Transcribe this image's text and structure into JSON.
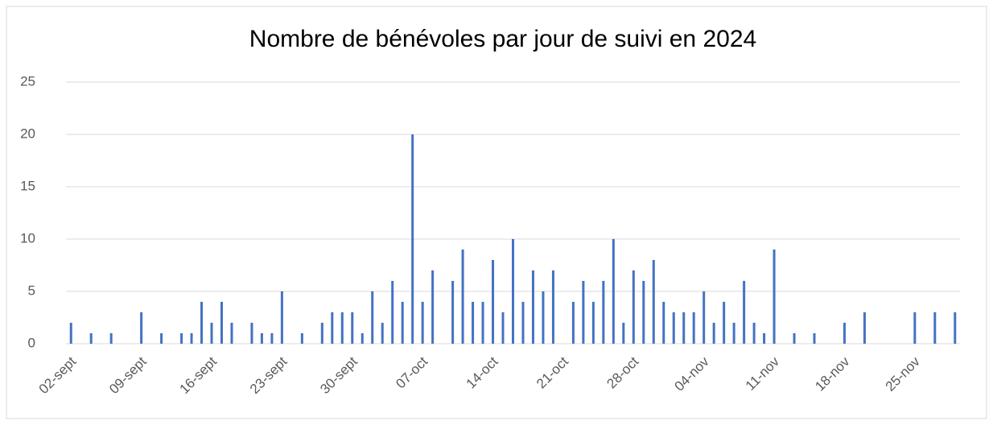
{
  "chart_data": {
    "type": "bar",
    "title": "Nombre de bénévoles par jour de suivi en 2024",
    "categories": [
      "02-sept",
      null,
      null,
      null,
      null,
      null,
      null,
      "09-sept",
      null,
      null,
      null,
      null,
      null,
      null,
      "16-sept",
      null,
      null,
      null,
      null,
      null,
      null,
      "23-sept",
      null,
      null,
      null,
      null,
      null,
      null,
      "30-sept",
      null,
      null,
      null,
      null,
      null,
      null,
      "07-oct",
      null,
      null,
      null,
      null,
      null,
      null,
      "14-oct",
      null,
      null,
      null,
      null,
      null,
      null,
      "21-oct",
      null,
      null,
      null,
      null,
      null,
      null,
      "28-oct",
      null,
      null,
      null,
      null,
      null,
      null,
      "04-nov",
      null,
      null,
      null,
      null,
      null,
      null,
      "11-nov",
      null,
      null,
      null,
      null,
      null,
      null,
      "18-nov",
      null,
      null,
      null,
      null,
      null,
      null,
      "25-nov",
      null,
      null,
      null,
      null
    ],
    "values": [
      2,
      null,
      1,
      null,
      1,
      null,
      null,
      3,
      null,
      1,
      null,
      1,
      1,
      4,
      2,
      4,
      2,
      null,
      2,
      1,
      1,
      5,
      null,
      1,
      null,
      2,
      3,
      3,
      3,
      1,
      5,
      2,
      6,
      4,
      20,
      4,
      7,
      null,
      6,
      9,
      4,
      4,
      8,
      3,
      10,
      4,
      7,
      5,
      7,
      null,
      4,
      6,
      4,
      6,
      10,
      2,
      7,
      6,
      8,
      4,
      3,
      3,
      3,
      5,
      2,
      4,
      2,
      6,
      2,
      1,
      9,
      null,
      1,
      null,
      1,
      null,
      null,
      2,
      null,
      3,
      null,
      null,
      null,
      null,
      3,
      null,
      3,
      null,
      3
    ],
    "color": "#4472c4",
    "ylim": [
      0,
      25
    ],
    "yticks": [
      0,
      5,
      10,
      15,
      20,
      25
    ],
    "grid": true
  }
}
